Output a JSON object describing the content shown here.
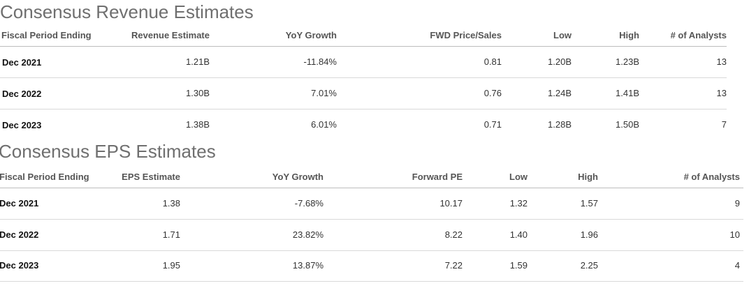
{
  "revenue": {
    "title": "Consensus Revenue Estimates",
    "headers": [
      "Fiscal Period Ending",
      "Revenue Estimate",
      "YoY Growth",
      "FWD Price/Sales",
      "Low",
      "High",
      "# of Analysts"
    ],
    "rows": [
      [
        "Dec 2021",
        "1.21B",
        "-11.84%",
        "0.81",
        "1.20B",
        "1.23B",
        "13"
      ],
      [
        "Dec 2022",
        "1.30B",
        "7.01%",
        "0.76",
        "1.24B",
        "1.41B",
        "13"
      ],
      [
        "Dec 2023",
        "1.38B",
        "6.01%",
        "0.71",
        "1.28B",
        "1.50B",
        "7"
      ]
    ]
  },
  "eps": {
    "title": "Consensus EPS Estimates",
    "headers": [
      "Fiscal Period Ending",
      "EPS Estimate",
      "YoY Growth",
      "Forward PE",
      "Low",
      "High",
      "# of Analysts"
    ],
    "rows": [
      [
        "Dec 2021",
        "1.38",
        "-7.68%",
        "10.17",
        "1.32",
        "1.57",
        "9"
      ],
      [
        "Dec 2022",
        "1.71",
        "23.82%",
        "8.22",
        "1.40",
        "1.96",
        "10"
      ],
      [
        "Dec 2023",
        "1.95",
        "13.87%",
        "7.22",
        "1.59",
        "2.25",
        "4"
      ]
    ]
  }
}
